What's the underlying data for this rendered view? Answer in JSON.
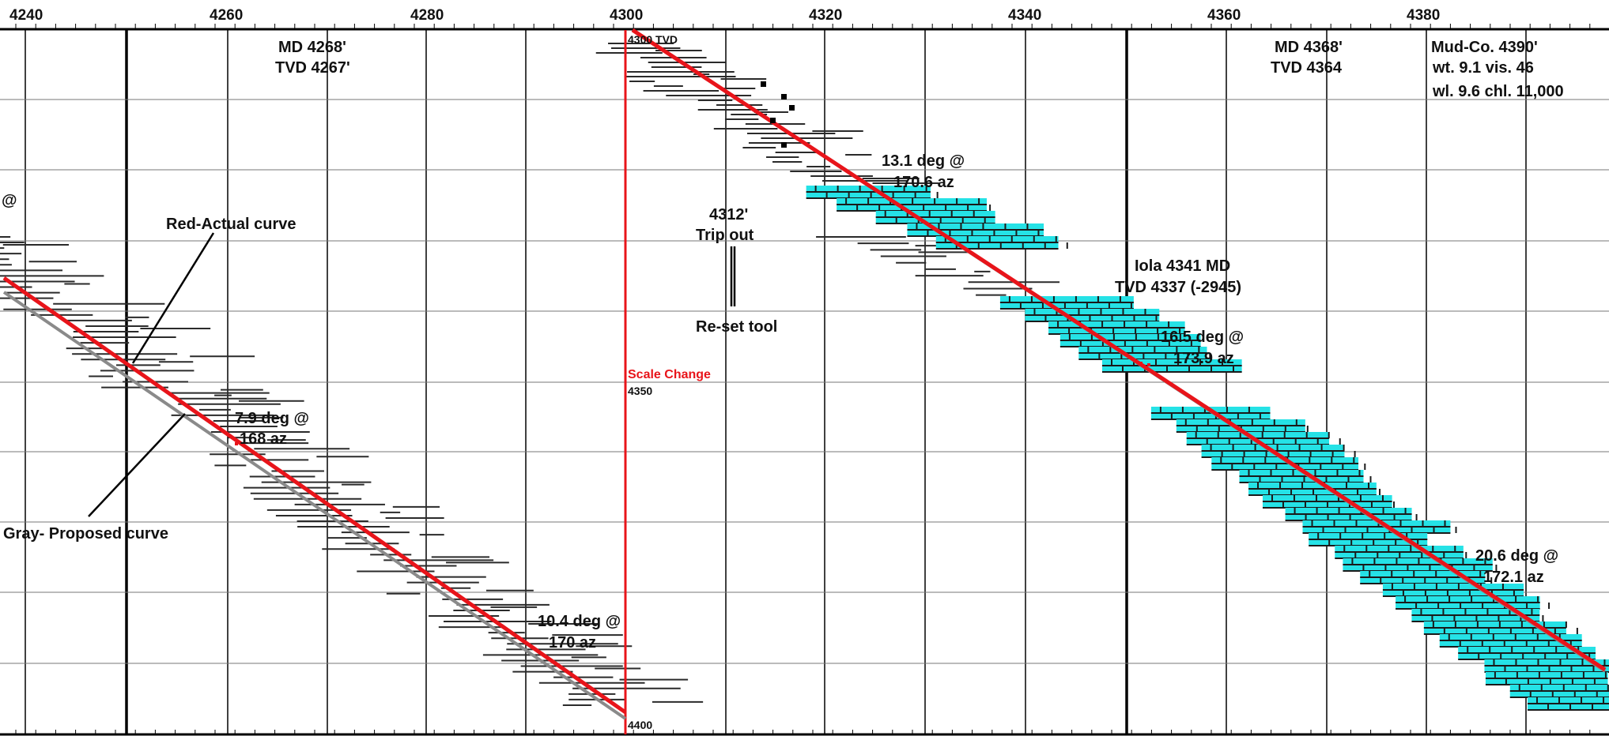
{
  "depth_axis": {
    "ticks": [
      "4240",
      "4260",
      "4280",
      "4300",
      "4320",
      "4340",
      "4360",
      "4380"
    ]
  },
  "labels": {
    "md_4268": "MD 4268'",
    "tvd_4267": "TVD 4267'",
    "md_4368": "MD 4368'",
    "tvd_4364": "TVD 4364",
    "mud_line1": "Mud-Co. 4390'",
    "mud_line2": "wt. 9.1  vis. 46",
    "mud_line3": "wl. 9.6  chl. 11,000",
    "red_actual": "Red-Actual curve",
    "gray_proposed": "Gray- Proposed curve",
    "trip_line1": "4312'",
    "trip_line2": "Trip out",
    "reset_tool": "Re-set tool",
    "scale_change": "Scale Change",
    "tvd_4300": "4300 TVD",
    "tvd_4350": "4350",
    "tvd_4400": "4400",
    "iola_line1": "Iola 4341 MD",
    "iola_line2": "TVD 4337 (-2945)",
    "partial_left": "@"
  },
  "surveys": [
    {
      "deg": "7.9 deg @",
      "az": "168 az"
    },
    {
      "deg": "10.4 deg @",
      "az": "170 az"
    },
    {
      "deg": "13.1 deg @",
      "az": "170.6 az"
    },
    {
      "deg": "16.5 deg @",
      "az": "173.9 az"
    },
    {
      "deg": "20.6 deg @",
      "az": "172.1 az"
    }
  ],
  "colors": {
    "actual_curve": "#e8141a",
    "proposed_curve": "#8a8a8a",
    "limestone_fill": "#25e2e6",
    "scale_change_line": "#e8141a",
    "grid": "#000000",
    "shale_lines": "#2a2a2a"
  }
}
